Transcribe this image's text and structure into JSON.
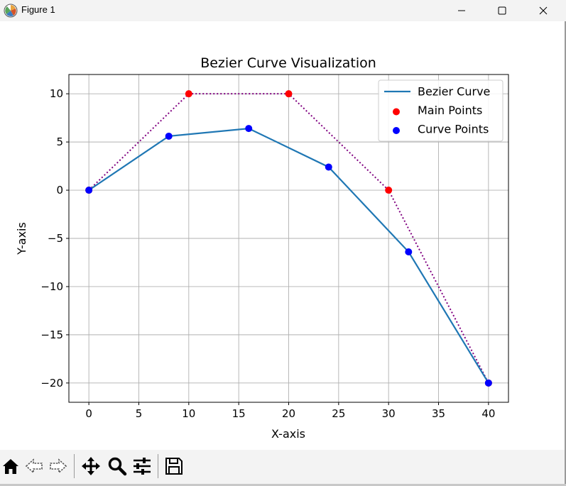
{
  "window": {
    "title": "Figure 1",
    "icons": {
      "app": "matplotlib-logo-icon",
      "minimize": "minimize-icon",
      "maximize": "maximize-icon",
      "close": "close-icon"
    }
  },
  "toolbar": {
    "buttons": [
      {
        "name": "home-button",
        "icon": "home-icon"
      },
      {
        "name": "back-button",
        "icon": "back-arrow-icon"
      },
      {
        "name": "forward-button",
        "icon": "forward-arrow-icon"
      },
      {
        "name": "pan-button",
        "icon": "move-icon"
      },
      {
        "name": "zoom-button",
        "icon": "magnifier-icon"
      },
      {
        "name": "configure-subplots-button",
        "icon": "sliders-icon"
      },
      {
        "name": "save-button",
        "icon": "floppy-disk-icon"
      }
    ]
  },
  "chart_data": {
    "type": "line",
    "title": "Bezier Curve Visualization",
    "xlabel": "X-axis",
    "ylabel": "Y-axis",
    "xlim": [
      -2,
      42
    ],
    "ylim": [
      -22,
      12
    ],
    "xticks": [
      0,
      5,
      10,
      15,
      20,
      25,
      30,
      35,
      40
    ],
    "yticks": [
      10,
      5,
      0,
      -5,
      -10,
      -15,
      -20
    ],
    "grid": true,
    "legend_position": "top-right",
    "series": [
      {
        "name": "Bezier Curve",
        "kind": "line",
        "color": "#1f77b4",
        "x": [
          0,
          8,
          16,
          24,
          32,
          40
        ],
        "y": [
          0,
          5.6,
          6.4,
          2.4,
          -6.4,
          -20
        ]
      },
      {
        "name": "Main Points",
        "kind": "scatter",
        "color": "#ff0000",
        "x": [
          0,
          10,
          20,
          30,
          40
        ],
        "y": [
          0,
          10,
          10,
          0,
          -20
        ]
      },
      {
        "name": "Curve Points",
        "kind": "scatter",
        "color": "#0000ff",
        "x": [
          0,
          8,
          16,
          24,
          32,
          40
        ],
        "y": [
          0,
          5.6,
          6.4,
          2.4,
          -6.4,
          -20
        ]
      }
    ],
    "control_polygon": {
      "color": "#800080",
      "style": "dotted",
      "x": [
        0,
        10,
        20,
        30,
        40
      ],
      "y": [
        0,
        10,
        10,
        0,
        -20
      ]
    }
  }
}
